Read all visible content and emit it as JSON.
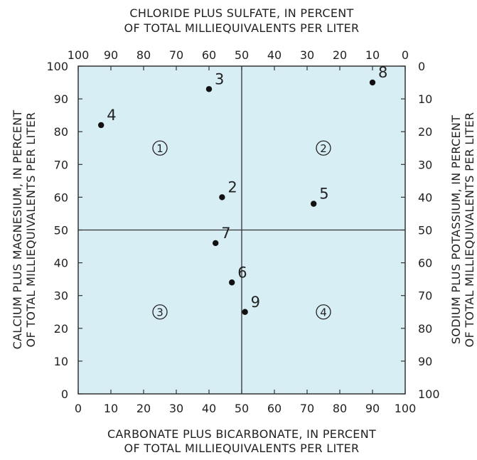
{
  "chart_data": {
    "type": "scatter",
    "title": "",
    "top_title_line1": "CHLORIDE PLUS SULFATE, IN PERCENT",
    "top_title_line2": "OF TOTAL MILLIEQUIVALENTS PER LITER",
    "bottom_title_line1": "CARBONATE PLUS BICARBONATE, IN PERCENT",
    "bottom_title_line2": "OF TOTAL MILLIEQUIVALENTS PER LITER",
    "left_title_line1": "CALCIUM PLUS MAGNESIUM, IN PERCENT",
    "left_title_line2": "OF TOTAL MILLIEQUIVALENTS PER LITER",
    "right_title_line1": "SODIUM PLUS POTASSIUM, IN PERCENT",
    "right_title_line2": "OF TOTAL MILLIEQUIVALENTS PER LITER",
    "xlim": [
      0,
      100
    ],
    "ylim": [
      0,
      100
    ],
    "bottom_ticks": [
      "0",
      "10",
      "20",
      "30",
      "40",
      "50",
      "60",
      "70",
      "80",
      "90",
      "100"
    ],
    "top_ticks": [
      "100",
      "90",
      "80",
      "70",
      "60",
      "50",
      "40",
      "30",
      "20",
      "10",
      "0"
    ],
    "left_ticks": [
      "0",
      "10",
      "20",
      "30",
      "40",
      "50",
      "60",
      "70",
      "80",
      "90",
      "100"
    ],
    "right_ticks": [
      "100",
      "90",
      "80",
      "70",
      "60",
      "50",
      "40",
      "30",
      "20",
      "10",
      "0"
    ],
    "divider_x": 50,
    "divider_y": 50,
    "grid": false,
    "plot_background": "#d7eef5",
    "point_color": "#111111",
    "points": [
      {
        "label": "2",
        "x": 44,
        "y": 60
      },
      {
        "label": "3",
        "x": 40,
        "y": 93
      },
      {
        "label": "4",
        "x": 7,
        "y": 82
      },
      {
        "label": "5",
        "x": 72,
        "y": 58
      },
      {
        "label": "6",
        "x": 47,
        "y": 34
      },
      {
        "label": "7",
        "x": 42,
        "y": 46
      },
      {
        "label": "8",
        "x": 90,
        "y": 95
      },
      {
        "label": "9",
        "x": 51,
        "y": 25
      }
    ],
    "quadrant_labels": [
      {
        "label": "1",
        "x": 25,
        "y": 75
      },
      {
        "label": "2",
        "x": 75,
        "y": 75
      },
      {
        "label": "3",
        "x": 25,
        "y": 25
      },
      {
        "label": "4",
        "x": 75,
        "y": 25
      }
    ]
  }
}
